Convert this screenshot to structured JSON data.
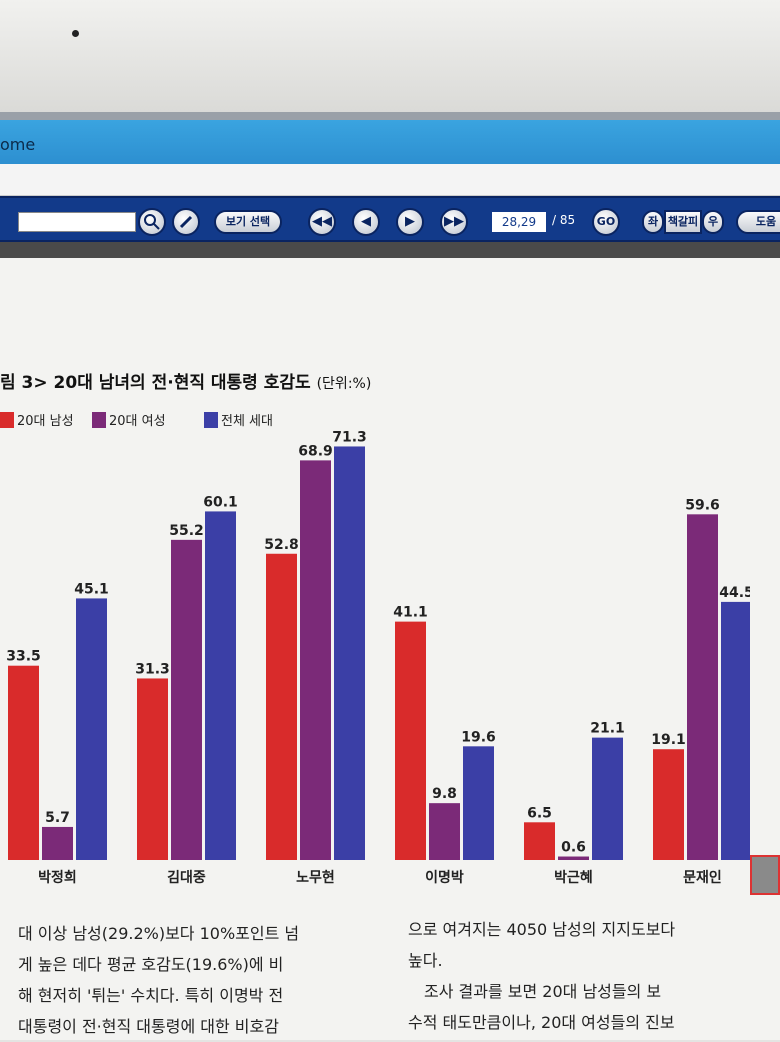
{
  "window": {
    "title": "ome"
  },
  "toolbar": {
    "view_select_label": "보기 선택",
    "page_value": "28,29",
    "page_total": "/ 85",
    "go_label": "GO",
    "bookmark_left": "좌",
    "bookmark_label": "책갈피",
    "bookmark_right": "우",
    "help_label": "도움"
  },
  "colors": {
    "male_20s": "#d92b2b",
    "female_20s": "#7b2a78",
    "all_generations": "#3b3fa6",
    "toolbar": "#123a8a"
  },
  "figure": {
    "caption": "림 3> 20대 남녀의 전·현직 대통령 호감도",
    "unit": "(단위:%)"
  },
  "chart_data": {
    "type": "bar",
    "categories": [
      "박정희",
      "김대중",
      "노무현",
      "이명박",
      "박근혜",
      "문재인"
    ],
    "series": [
      {
        "name": "20대 남성",
        "values": [
          33.5,
          31.3,
          52.8,
          41.1,
          6.5,
          19.1
        ]
      },
      {
        "name": "20대 여성",
        "values": [
          5.7,
          55.2,
          68.9,
          9.8,
          0.6,
          59.6
        ]
      },
      {
        "name": "전체 세대",
        "values": [
          45.1,
          60.1,
          71.3,
          19.6,
          21.1,
          44.5
        ]
      }
    ],
    "title": "림 3> 20대 남녀의 전·현직 대통령 호감도",
    "unit": "(단위:%)",
    "legend_position": "top-left",
    "grid": false
  },
  "body_text": {
    "left": [
      "대 이상 남성(29.2%)보다 10%포인트 넘",
      "게 높은 데다 평균 호감도(19.6%)에 비",
      "해 현저히 '튀는' 수치다. 특히 이명박 전",
      "대통령이 전·현직 대통령에 대한 비호감"
    ],
    "right": [
      "으로 여겨지는 4050 남성의 지지도보다",
      "높다.",
      "　조사 결과를 보면 20대 남성들의 보",
      "수적 태도만큼이나, 20대 여성들의 진보"
    ]
  }
}
